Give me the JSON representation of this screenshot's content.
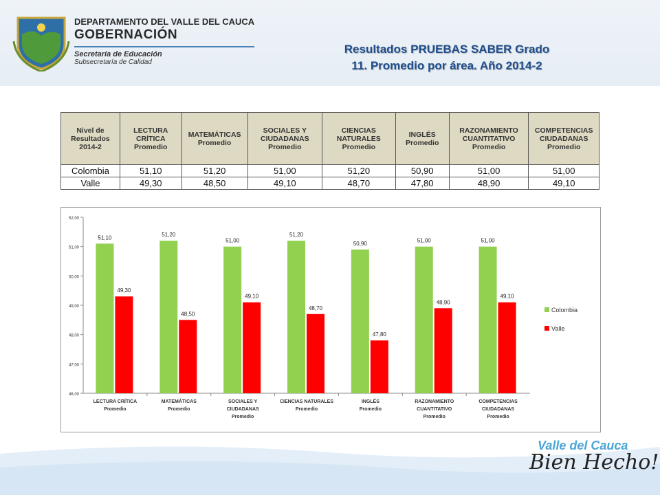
{
  "header": {
    "department": "DEPARTAMENTO DEL VALLE DEL CAUCA",
    "gobernacion": "GOBERNACIÓN",
    "secretaria": "Secretaría de Educación",
    "subsecretaria": "Subsecretaría de Calidad",
    "title_line1": "Resultados PRUEBAS SABER Grado",
    "title_line2": "11. Promedio por área. Año 2014-2"
  },
  "table": {
    "headers": [
      "Nivel de Resultados 2014-2",
      "LECTURA CRÍTICA Promedio",
      "MATEMÁTICAS Promedio",
      "SOCIALES Y CIUDADANAS Promedio",
      "CIENCIAS NATURALES Promedio",
      "INGLÉS Promedio",
      "RAZONAMIENTO CUANTITATIVO Promedio",
      "COMPETENCIAS CIUDADANAS Promedio"
    ],
    "rows": [
      [
        "Colombia",
        "51,10",
        "51,20",
        "51,00",
        "51,20",
        "50,90",
        "51,00",
        "51,00"
      ],
      [
        "Valle",
        "49,30",
        "48,50",
        "49,10",
        "48,70",
        "47,80",
        "48,90",
        "49,10"
      ]
    ]
  },
  "chart_data": {
    "type": "bar",
    "categories": [
      [
        "LECTURA CRÍTICA",
        "Promedio"
      ],
      [
        "MATEMÁTICAS",
        "Promedio"
      ],
      [
        "SOCIALES Y",
        "CIUDADANAS",
        "Promedio"
      ],
      [
        "CIENCIAS NATURALES",
        "Promedio"
      ],
      [
        "INGLÉS",
        "Promedio"
      ],
      [
        "RAZONAMIENTO",
        "CUANTITATIVO",
        "Promedio"
      ],
      [
        "COMPETENCIAS",
        "CIUDADANAS",
        "Promedio"
      ]
    ],
    "series": [
      {
        "name": "Colombia",
        "color": "#92d050",
        "values": [
          51.1,
          51.2,
          51.0,
          51.2,
          50.9,
          51.0,
          51.0
        ],
        "labels": [
          "51,10",
          "51,20",
          "51,00",
          "51,20",
          "50,90",
          "51,00",
          "51,00"
        ]
      },
      {
        "name": "Valle",
        "color": "#ff0000",
        "values": [
          49.3,
          48.5,
          49.1,
          48.7,
          47.8,
          48.9,
          49.1
        ],
        "labels": [
          "49,30",
          "48,50",
          "49,10",
          "48,70",
          "47,80",
          "48,90",
          "49,10"
        ]
      }
    ],
    "ylim": [
      46,
      52
    ],
    "yticks": [
      "46,00",
      "47,00",
      "48,00",
      "49,00",
      "50,00",
      "51,00",
      "52,00"
    ],
    "grid": false,
    "legend": "right"
  },
  "footer": {
    "logo_line1": "Valle del Cauca",
    "logo_line2": "Bien Hecho!"
  }
}
